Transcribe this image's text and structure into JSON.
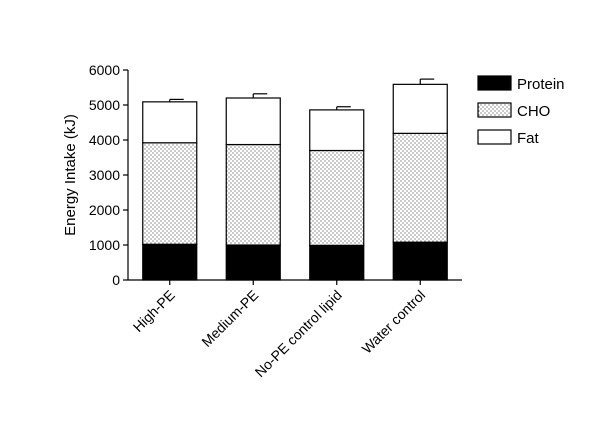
{
  "chart_data": {
    "type": "bar",
    "stacked": true,
    "ylabel": "Energy Intake (kJ)",
    "xlabel": "",
    "ylim": [
      0,
      6000
    ],
    "yticks": [
      0,
      1000,
      2000,
      3000,
      4000,
      5000,
      6000
    ],
    "categories": [
      "High-PE",
      "Medium-PE",
      "No-PE control lipid",
      "Water control"
    ],
    "series": [
      {
        "name": "Protein",
        "values": [
          1020,
          1000,
          990,
          1080
        ],
        "fill": "solid-black"
      },
      {
        "name": "CHO",
        "values": [
          2900,
          2870,
          2710,
          3110
        ],
        "fill": "dotted"
      },
      {
        "name": "Fat",
        "values": [
          1170,
          1330,
          1160,
          1400
        ],
        "fill": "white"
      }
    ],
    "error_bars": [
      70,
      120,
      90,
      150
    ],
    "legend": "right",
    "grid": false,
    "colors": {
      "protein": "#000000",
      "cho_dots": "#000000",
      "fat": "#ffffff",
      "outline": "#000000"
    }
  }
}
